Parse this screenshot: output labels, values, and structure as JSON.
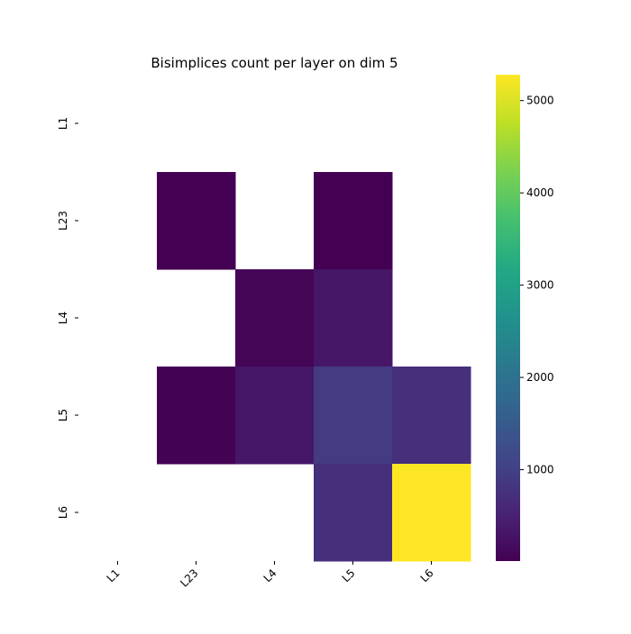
{
  "chart_data": {
    "type": "heatmap",
    "title": "Bisimplices count per layer on dim 5",
    "xlabel": "",
    "ylabel": "",
    "x_categories": [
      "L1",
      "L23",
      "L4",
      "L5",
      "L6"
    ],
    "y_categories": [
      "L1",
      "L23",
      "L4",
      "L5",
      "L6"
    ],
    "values": [
      [
        null,
        null,
        null,
        null,
        null
      ],
      [
        null,
        10,
        null,
        12,
        null
      ],
      [
        null,
        null,
        80,
        320,
        null
      ],
      [
        null,
        20,
        330,
        930,
        720
      ],
      [
        null,
        null,
        null,
        720,
        5280
      ]
    ],
    "colorbar": {
      "colormap": "viridis",
      "min": 10,
      "max": 5280,
      "ticks": [
        1000,
        2000,
        3000,
        4000,
        5000
      ]
    },
    "grid": false,
    "legend": "colorbar-right",
    "missing_color": "#ffffff"
  }
}
